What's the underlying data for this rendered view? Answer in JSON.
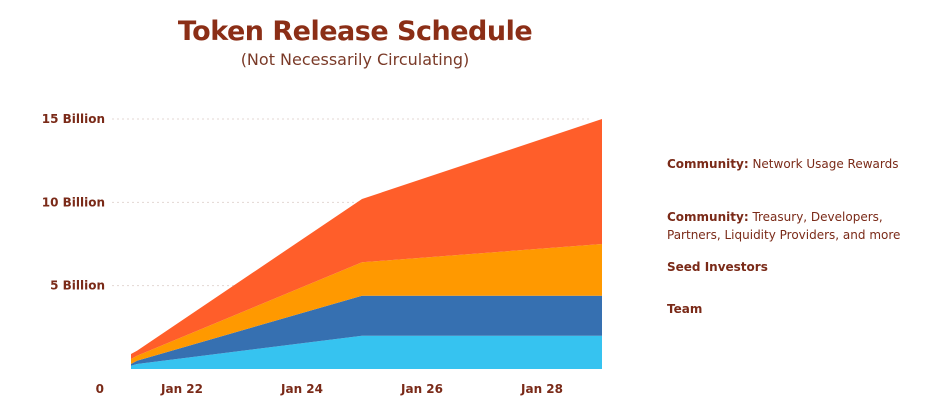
{
  "title": "Token Release Schedule",
  "subtitle": "(Not Necessarily Circulating)",
  "colors": {
    "title": "#8b2e16",
    "axis_text": "#7a2a18",
    "grid": "#e3d7d3",
    "community_network": "#ff5e2a",
    "community_treasury": "#ff9900",
    "seed": "#3670b1",
    "team": "#36c3f0"
  },
  "legend": [
    {
      "name": "Community:",
      "desc": "Network Usage Rewards",
      "color_key": "community_network",
      "icon": "triangle-swatch-icon"
    },
    {
      "name": "Community:",
      "desc": "Treasury, Developers, Partners, Liquidity Providers, and more",
      "color_key": "community_treasury",
      "icon": "triangle-swatch-icon"
    },
    {
      "name": "Seed Investors",
      "desc": "",
      "color_key": "seed",
      "icon": "triangle-swatch-icon"
    },
    {
      "name": "Team",
      "desc": "",
      "color_key": "team",
      "icon": "triangle-swatch-icon"
    }
  ],
  "chart_data": {
    "type": "area",
    "stacked": true,
    "title": "Token Release Schedule",
    "subtitle": "(Not Necessarily Circulating)",
    "x_ticks": [
      "Jan 22",
      "Jan 24",
      "Jan 26",
      "Jan 28"
    ],
    "x_tick_values": [
      2022,
      2024,
      2026,
      2028
    ],
    "x_range": [
      2021,
      2029
    ],
    "y_ticks": [
      {
        "value": 0,
        "label": "0"
      },
      {
        "value": 5,
        "label": "5 Billion"
      },
      {
        "value": 10,
        "label": "10 Billion"
      },
      {
        "value": 15,
        "label": "15 Billion"
      }
    ],
    "ylim": [
      0,
      15
    ],
    "y_unit": "Billion tokens",
    "x": [
      2021.15,
      2021.25,
      2025.0,
      2029.0
    ],
    "series": [
      {
        "name": "Team",
        "color_key": "team",
        "values": [
          0.2,
          0.3,
          2.0,
          2.0
        ]
      },
      {
        "name": "Seed Investors",
        "color_key": "seed",
        "values": [
          0.1,
          0.2,
          2.4,
          2.4
        ]
      },
      {
        "name": "Community: Treasury, Developers, Partners, Liquidity Providers, and more",
        "color_key": "community_treasury",
        "values": [
          0.3,
          0.3,
          2.0,
          3.1
        ]
      },
      {
        "name": "Community: Network Usage Rewards",
        "color_key": "community_network",
        "values": [
          0.3,
          0.3,
          3.8,
          7.5
        ]
      }
    ],
    "grid": true,
    "legend_position": "right"
  }
}
